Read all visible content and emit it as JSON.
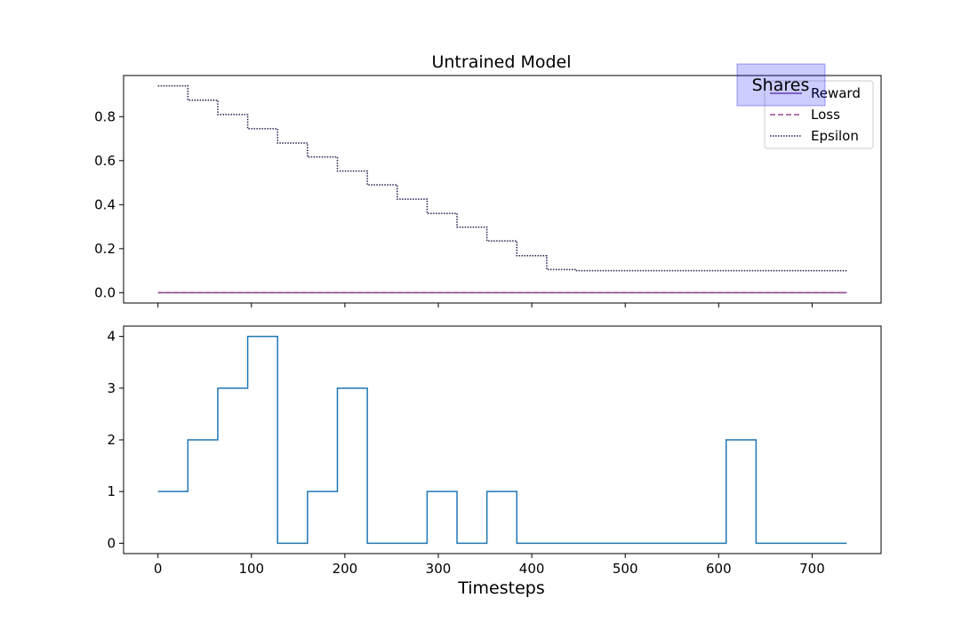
{
  "chart_data": [
    {
      "type": "line",
      "title": "Untrained Model",
      "xlabel": "",
      "ylabel": "",
      "xlim": [
        -36.8,
        773.8
      ],
      "ylim": [
        -0.047,
        0.987
      ],
      "x_ticks": [
        0,
        100,
        200,
        300,
        400,
        500,
        600,
        700
      ],
      "x_tick_labels_shown": false,
      "y_ticks": [
        0.0,
        0.2,
        0.4,
        0.6,
        0.8
      ],
      "y_tick_labels": [
        "0.0",
        "0.2",
        "0.4",
        "0.6",
        "0.8"
      ],
      "grid": false,
      "legend_position": "upper right",
      "series": [
        {
          "name": "Reward",
          "color": "#7b4f9e",
          "style": "solid",
          "x": [
            0,
            737
          ],
          "values": [
            0,
            0
          ]
        },
        {
          "name": "Loss",
          "color": "#a0468a",
          "style": "dashed",
          "x": [
            0,
            737
          ],
          "values": [
            0,
            0
          ]
        },
        {
          "name": "Epsilon",
          "color": "#1f1f4d",
          "style": "dotted",
          "x": [
            0,
            32,
            64,
            96,
            128,
            160,
            192,
            224,
            256,
            288,
            320,
            352,
            384,
            416,
            448,
            737
          ],
          "values": [
            0.94,
            0.875,
            0.81,
            0.745,
            0.68,
            0.617,
            0.553,
            0.49,
            0.425,
            0.36,
            0.298,
            0.235,
            0.168,
            0.105,
            0.1,
            0.1
          ],
          "step": "post"
        }
      ]
    },
    {
      "type": "line",
      "title": "",
      "xlabel": "Timesteps",
      "ylabel": "",
      "xlim": [
        -36.8,
        773.8
      ],
      "ylim": [
        -0.2,
        4.2
      ],
      "x_ticks": [
        0,
        100,
        200,
        300,
        400,
        500,
        600,
        700
      ],
      "x_tick_labels": [
        "0",
        "100",
        "200",
        "300",
        "400",
        "500",
        "600",
        "700"
      ],
      "y_ticks": [
        0,
        1,
        2,
        3,
        4
      ],
      "y_tick_labels": [
        "0",
        "1",
        "2",
        "3",
        "4"
      ],
      "grid": false,
      "series": [
        {
          "color": "#1f77b4",
          "style": "solid",
          "x": [
            0,
            32,
            64,
            96,
            128,
            160,
            192,
            224,
            256,
            288,
            320,
            352,
            384,
            416,
            448,
            480,
            512,
            544,
            576,
            608,
            640,
            672,
            704,
            737
          ],
          "values": [
            1,
            2,
            3,
            4,
            0,
            1,
            3,
            0,
            0,
            1,
            0,
            1,
            0,
            0,
            0,
            0,
            0,
            0,
            0,
            2,
            0,
            0,
            0,
            0
          ],
          "step": "post"
        }
      ]
    }
  ],
  "overlay": {
    "label": "Shares",
    "fill_color": "#0000ff",
    "fill_opacity": 0.2
  }
}
